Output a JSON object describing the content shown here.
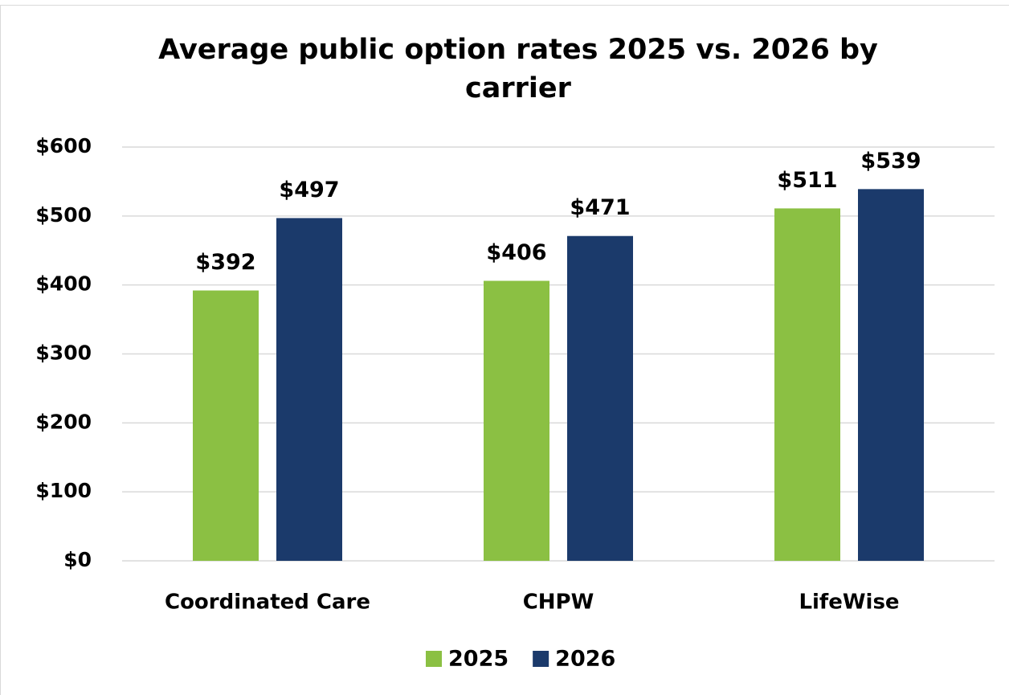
{
  "chart_data": {
    "type": "bar",
    "title": "Average public option rates 2025 vs. 2026 by carrier",
    "categories": [
      "Coordinated Care",
      "CHPW",
      "LifeWise"
    ],
    "series": [
      {
        "name": "2025",
        "color": "#8bc043",
        "values": [
          392,
          406,
          511
        ],
        "value_labels": [
          "$392",
          "$406",
          "$511"
        ]
      },
      {
        "name": "2026",
        "color": "#1b3a6b",
        "values": [
          497,
          471,
          539
        ],
        "value_labels": [
          "$497",
          "$471",
          "$539"
        ]
      }
    ],
    "ylim": [
      0,
      600
    ],
    "yticks": [
      {
        "value": 0,
        "label": "$0"
      },
      {
        "value": 100,
        "label": "$100"
      },
      {
        "value": 200,
        "label": "$200"
      },
      {
        "value": 300,
        "label": "$300"
      },
      {
        "value": 400,
        "label": "$400"
      },
      {
        "value": 500,
        "label": "$500"
      },
      {
        "value": 600,
        "label": "$600"
      }
    ],
    "grid": true,
    "legend": "bottom"
  }
}
